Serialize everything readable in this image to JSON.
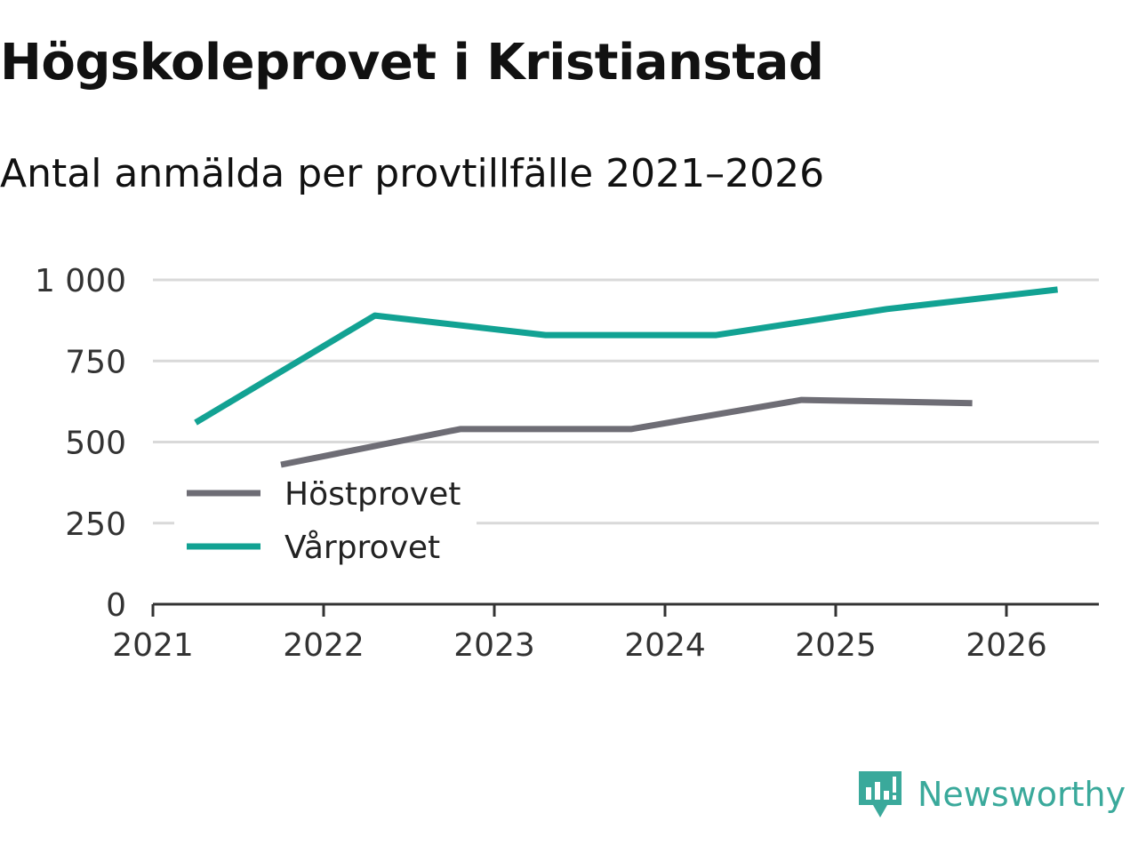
{
  "title": "Högskoleprovet i Kristianstad",
  "subtitle": "Antal anmälda per provtillfälle 2021–2026",
  "brand": {
    "name": "Newsworthy",
    "icon": "newsworthy-logo-icon",
    "color": "#3aa99b"
  },
  "chart_data": {
    "type": "line",
    "title": "Högskoleprovet i Kristianstad",
    "subtitle": "Antal anmälda per provtillfälle 2021–2026",
    "xlabel": "",
    "ylabel": "",
    "xlim": [
      2021,
      2026.55
    ],
    "ylim": [
      0,
      1000
    ],
    "y_ticks": [
      0,
      250,
      500,
      750,
      1000
    ],
    "y_tick_labels": [
      "0",
      "250",
      "500",
      "750",
      "1 000"
    ],
    "x_ticks": [
      2021,
      2022,
      2023,
      2024,
      2025,
      2026
    ],
    "x_tick_labels": [
      "2021",
      "2022",
      "2023",
      "2024",
      "2025",
      "2026"
    ],
    "grid": true,
    "legend_position": "bottom-left",
    "series": [
      {
        "name": "Höstprovet",
        "color": "#6e6d75",
        "x": [
          2021.75,
          2022.8,
          2023.8,
          2024.8,
          2025.8
        ],
        "values": [
          430,
          540,
          540,
          630,
          620
        ]
      },
      {
        "name": "Vårprovet",
        "color": "#12a293",
        "x": [
          2021.25,
          2022.3,
          2023.3,
          2024.3,
          2025.3,
          2026.3
        ],
        "values": [
          560,
          890,
          830,
          830,
          910,
          970
        ]
      }
    ]
  }
}
